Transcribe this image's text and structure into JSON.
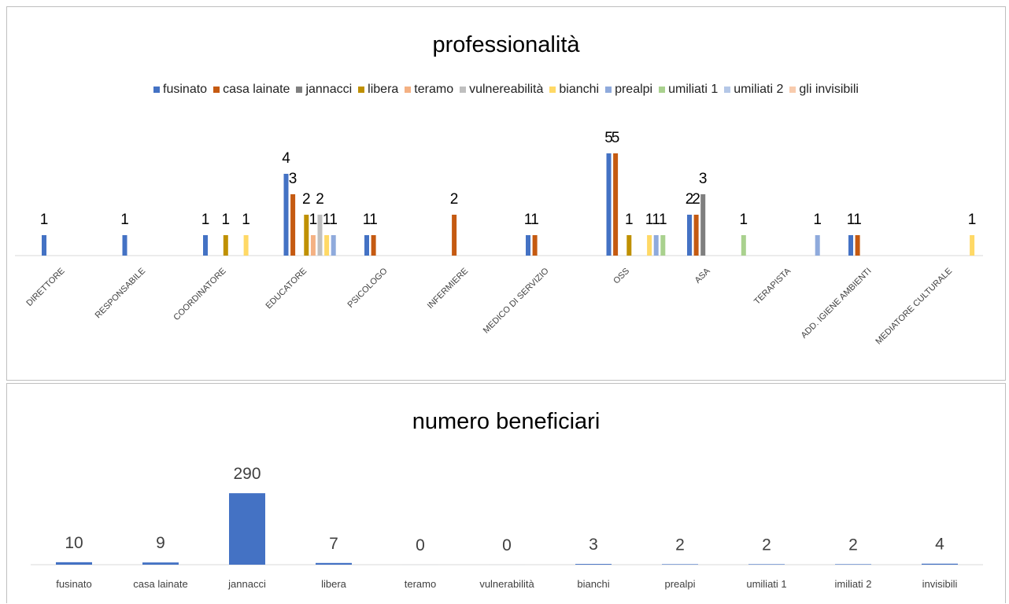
{
  "chart_data": [
    {
      "type": "bar",
      "title": "professionalità",
      "legend_position": "top",
      "grid": false,
      "ylim": [
        0,
        5
      ],
      "categories": [
        "DIRETTORE",
        "RESPONSABILE",
        "COORDINATORE",
        "EDUCATORE",
        "PSICOLOGO",
        "INFERMIERE",
        "MEDICO DI SERVIZIO",
        "OSS",
        "ASA",
        "TERAPISTA",
        "ADD. IGIENE AMBIENTI",
        "MEDIATORE CULTURALE"
      ],
      "series": [
        {
          "name": "fusinato",
          "color": "#4472C4",
          "values": [
            1,
            1,
            1,
            4,
            1,
            null,
            1,
            5,
            2,
            null,
            1,
            null
          ]
        },
        {
          "name": "casa lainate",
          "color": "#C55A11",
          "values": [
            null,
            null,
            null,
            3,
            1,
            2,
            1,
            5,
            2,
            null,
            1,
            null
          ]
        },
        {
          "name": "jannacci",
          "color": "#7F7F7F",
          "values": [
            null,
            null,
            null,
            null,
            null,
            null,
            null,
            null,
            3,
            null,
            null,
            null
          ]
        },
        {
          "name": "libera",
          "color": "#BF9000",
          "values": [
            null,
            null,
            1,
            2,
            null,
            null,
            null,
            1,
            null,
            null,
            null,
            null
          ]
        },
        {
          "name": "teramo",
          "color": "#F4B183",
          "values": [
            null,
            null,
            null,
            1,
            null,
            null,
            null,
            null,
            null,
            null,
            null,
            null
          ]
        },
        {
          "name": "vulnereabilità",
          "color": "#BFBFBF",
          "values": [
            null,
            null,
            null,
            2,
            null,
            null,
            null,
            null,
            null,
            null,
            null,
            null
          ]
        },
        {
          "name": "bianchi",
          "color": "#FFD966",
          "values": [
            null,
            null,
            1,
            1,
            null,
            null,
            null,
            1,
            null,
            null,
            null,
            1
          ]
        },
        {
          "name": "prealpi",
          "color": "#8FAADC",
          "values": [
            null,
            null,
            null,
            1,
            null,
            null,
            null,
            1,
            null,
            1,
            null,
            null
          ]
        },
        {
          "name": "umiliati 1",
          "color": "#A9D18E",
          "values": [
            null,
            null,
            null,
            null,
            null,
            null,
            null,
            1,
            1,
            null,
            null,
            null
          ]
        },
        {
          "name": "umiliati 2",
          "color": "#B4C7E7",
          "values": [
            null,
            null,
            null,
            null,
            null,
            null,
            null,
            null,
            null,
            null,
            null,
            null
          ]
        },
        {
          "name": "gli invisibili",
          "color": "#F8CBAD",
          "values": [
            null,
            null,
            null,
            null,
            null,
            null,
            null,
            null,
            null,
            null,
            null,
            null
          ]
        }
      ]
    },
    {
      "type": "bar",
      "title": "numero beneficiari",
      "grid": false,
      "ylim": [
        0,
        300
      ],
      "color": "#4472C4",
      "categories": [
        "fusinato",
        "casa lainate",
        "jannacci",
        "libera",
        "teramo",
        "vulnerabilità",
        "bianchi",
        "prealpi",
        "umiliati 1",
        "imiliati 2",
        "invisibili"
      ],
      "values": [
        10,
        9,
        290,
        7,
        0,
        0,
        3,
        2,
        2,
        2,
        4
      ]
    }
  ]
}
